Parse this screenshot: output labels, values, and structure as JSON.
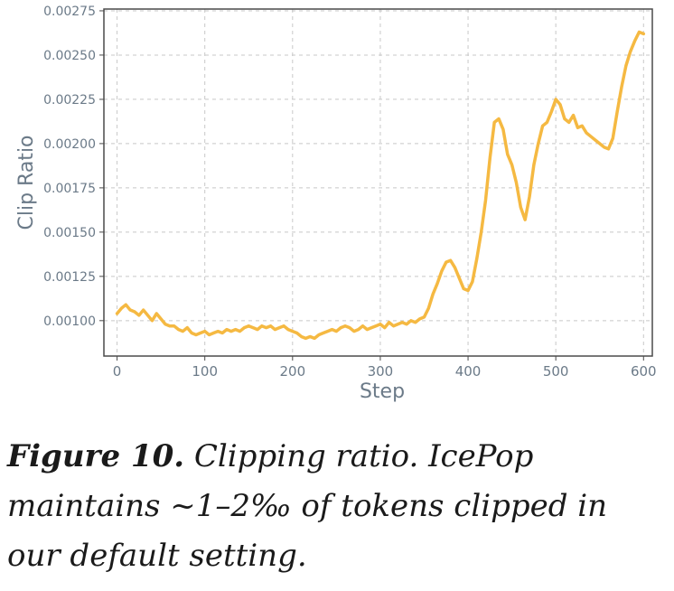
{
  "caption": {
    "label": "Figure 10.",
    "text": "Clipping ratio. IcePop maintains ~1–2‰  of tokens clipped in our default setting."
  },
  "chart_data": {
    "type": "line",
    "title": "",
    "xlabel": "Step",
    "ylabel": "Clip Ratio",
    "xlim": [
      -15,
      610
    ],
    "ylim": [
      0.0008,
      0.00276
    ],
    "xticks": [
      0,
      100,
      200,
      300,
      400,
      500,
      600
    ],
    "yticks": [
      0.001,
      0.00125,
      0.0015,
      0.00175,
      0.002,
      0.00225,
      0.0025,
      0.00275
    ],
    "xtick_labels": [
      "0",
      "100",
      "200",
      "300",
      "400",
      "500",
      "600"
    ],
    "ytick_labels": [
      "0.00100",
      "0.00125",
      "0.00150",
      "0.00175",
      "0.00200",
      "0.00225",
      "0.00250",
      "0.00275"
    ],
    "grid": true,
    "line_color": "#f5b942",
    "axis_color": "#4a4a4a",
    "grid_color": "#c8c8c8",
    "text_color": "#6b7a88",
    "series": [
      {
        "x": [
          0,
          5,
          10,
          15,
          20,
          25,
          30,
          35,
          40,
          45,
          50,
          55,
          60,
          65,
          70,
          75,
          80,
          85,
          90,
          95,
          100,
          105,
          110,
          115,
          120,
          125,
          130,
          135,
          140,
          145,
          150,
          155,
          160,
          165,
          170,
          175,
          180,
          185,
          190,
          195,
          200,
          205,
          210,
          215,
          220,
          225,
          230,
          235,
          240,
          245,
          250,
          255,
          260,
          265,
          270,
          275,
          280,
          285,
          290,
          295,
          300,
          305,
          310,
          315,
          320,
          325,
          330,
          335,
          340,
          345,
          350,
          355,
          360,
          365,
          370,
          375,
          380,
          385,
          390,
          395,
          400,
          405,
          410,
          415,
          420,
          425,
          430,
          435,
          440,
          445,
          450,
          455,
          460,
          465,
          470,
          475,
          480,
          485,
          490,
          495,
          500,
          505,
          510,
          515,
          520,
          525,
          530,
          535,
          540,
          545,
          550,
          555,
          560,
          565,
          570,
          575,
          580,
          585,
          590,
          595,
          600
        ],
        "values": [
          0.00104,
          0.00107,
          0.00109,
          0.00106,
          0.00105,
          0.00103,
          0.00106,
          0.00103,
          0.001,
          0.00104,
          0.00101,
          0.00098,
          0.00097,
          0.00097,
          0.00095,
          0.00094,
          0.00096,
          0.00093,
          0.00092,
          0.00093,
          0.00094,
          0.00092,
          0.00093,
          0.00094,
          0.00093,
          0.00095,
          0.00094,
          0.00095,
          0.00094,
          0.00096,
          0.00097,
          0.00096,
          0.00095,
          0.00097,
          0.00096,
          0.00097,
          0.00095,
          0.00096,
          0.00097,
          0.00095,
          0.00094,
          0.00093,
          0.00091,
          0.0009,
          0.00091,
          0.0009,
          0.00092,
          0.00093,
          0.00094,
          0.00095,
          0.00094,
          0.00096,
          0.00097,
          0.00096,
          0.00094,
          0.00095,
          0.00097,
          0.00095,
          0.00096,
          0.00097,
          0.00098,
          0.00096,
          0.00099,
          0.00097,
          0.00098,
          0.00099,
          0.00098,
          0.001,
          0.00099,
          0.00101,
          0.00102,
          0.00107,
          0.00115,
          0.00121,
          0.00128,
          0.00133,
          0.00134,
          0.0013,
          0.00124,
          0.00118,
          0.00117,
          0.00122,
          0.00135,
          0.0015,
          0.00168,
          0.00192,
          0.00212,
          0.00214,
          0.00208,
          0.00194,
          0.00188,
          0.00178,
          0.00164,
          0.00157,
          0.0017,
          0.00188,
          0.002,
          0.0021,
          0.00212,
          0.00218,
          0.00225,
          0.00222,
          0.00214,
          0.00212,
          0.00216,
          0.00209,
          0.0021,
          0.00206,
          0.00204,
          0.00202,
          0.002,
          0.00198,
          0.00197,
          0.00203,
          0.00218,
          0.00232,
          0.00244,
          0.00252,
          0.00258,
          0.00263,
          0.00262
        ]
      }
    ]
  }
}
